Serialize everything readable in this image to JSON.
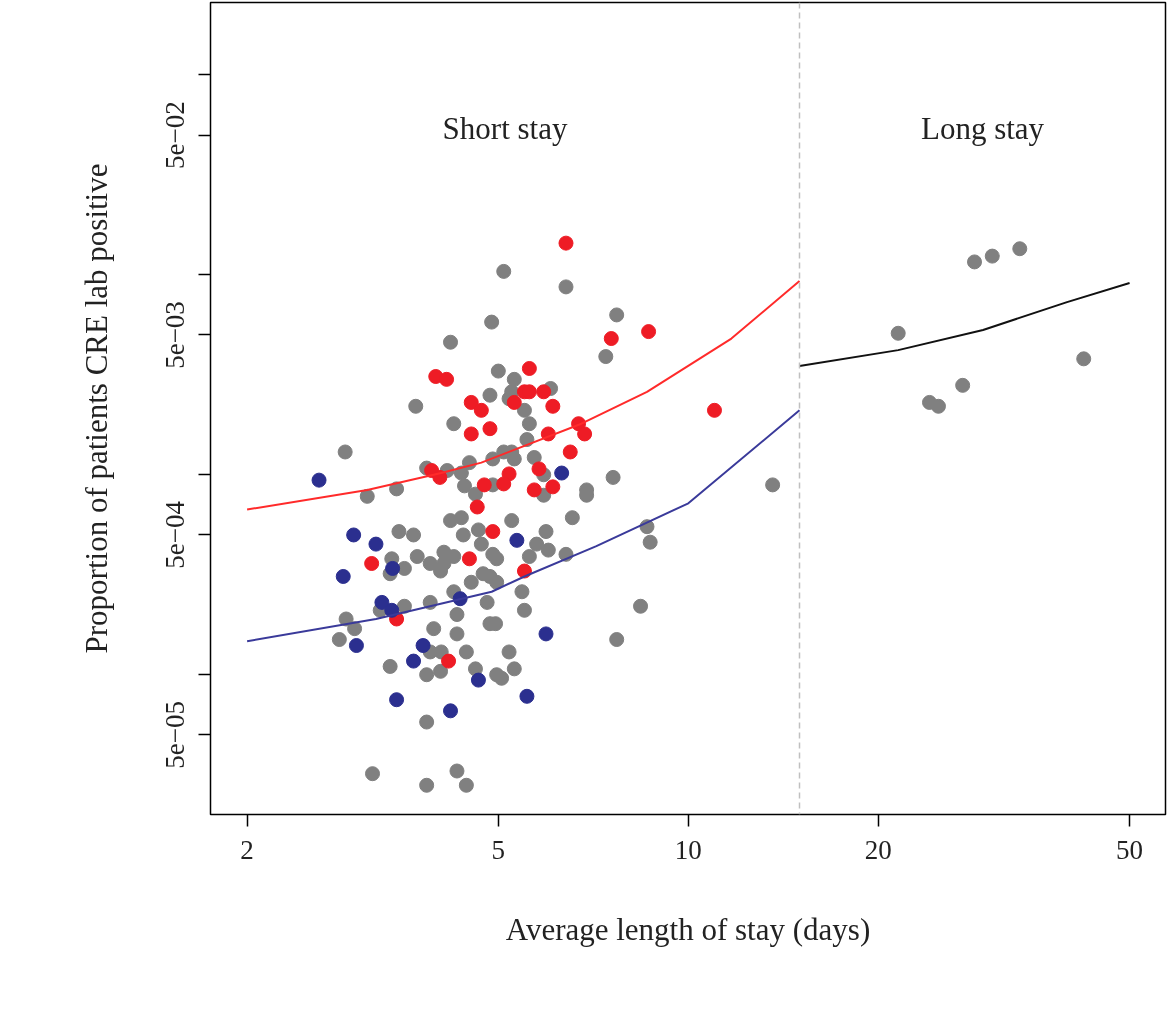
{
  "chart_data": {
    "type": "scatter",
    "xlabel": "Average length of stay (days)",
    "ylabel": "Proportion of patients CRE lab positive",
    "log": "xy",
    "xlim": [
      1.75,
      57
    ],
    "ylim": [
      2e-05,
      0.23
    ],
    "xticks": [
      2,
      5,
      10,
      20,
      50
    ],
    "yticks": [
      {
        "value": 0.1,
        "label": null
      },
      {
        "value": 0.05,
        "label": "5e−02"
      },
      {
        "value": 0.01,
        "label": null
      },
      {
        "value": 0.005,
        "label": "5e−03"
      },
      {
        "value": 0.001,
        "label": null
      },
      {
        "value": 0.0005,
        "label": "5e−04"
      },
      {
        "value": 0.0001,
        "label": null
      },
      {
        "value": 5e-05,
        "label": "5e−05"
      }
    ],
    "annotations": [
      "Short stay",
      "Long stay"
    ],
    "ref_lines": [
      {
        "axis": "x",
        "value": 15,
        "color": "#c0c0c0",
        "line_style": "dashed"
      }
    ],
    "series": [
      {
        "marker": "circle",
        "color": "#808080",
        "x": [
          4.88,
          4.2,
          3.7,
          4.25,
          4.85,
          2.86,
          3.45,
          3.1,
          3.85,
          4.15,
          4.37,
          4.5,
          4.42,
          4.6,
          5.1,
          6.4,
          7.7,
          7.4,
          5.0,
          5.3,
          6.05,
          5.25,
          5.2,
          5.5,
          5.6,
          5.55,
          5.1,
          5.25,
          4.9,
          5.3,
          5.7,
          5.9,
          4.9,
          5.9,
          7.6,
          6.9,
          6.9,
          3.48,
          3.67,
          3.39,
          3.37,
          3.55,
          3.72,
          3.9,
          4.1,
          4.05,
          4.1,
          4.2,
          4.37,
          4.4,
          4.65,
          4.7,
          4.25,
          4.25,
          4.53,
          3.25,
          3.55,
          3.9,
          2.87,
          2.96,
          2.8,
          3.95,
          4.3,
          4.3,
          3.9,
          4.06,
          4.45,
          3.37,
          3.85,
          4.05,
          4.6,
          3.85,
          3.16,
          4.3,
          3.85,
          4.45,
          4.85,
          4.9,
          5.25,
          6.55,
          5.95,
          5.75,
          5.6,
          6.0,
          6.4,
          8.6,
          8.7,
          4.97,
          4.73,
          4.97,
          5.45,
          4.8,
          5.5,
          8.4,
          4.85,
          4.95,
          5.2,
          7.7,
          5.3,
          4.97,
          5.06,
          13.6,
          21.5,
          28.4,
          30.3,
          33.5,
          42.3,
          27.2,
          24.1,
          24.9
        ],
        "values": [
          0.0058,
          0.0046,
          0.0022,
          0.0018,
          0.0025,
          0.0013,
          0.00085,
          0.00078,
          0.00108,
          0.00105,
          0.00102,
          0.00115,
          0.00088,
          0.0008,
          0.0104,
          0.0087,
          0.0063,
          0.0039,
          0.0033,
          0.003,
          0.0027,
          0.0026,
          0.0024,
          0.0021,
          0.0018,
          0.0015,
          0.0013,
          0.0013,
          0.0012,
          0.0012,
          0.00122,
          0.001,
          0.00089,
          0.00079,
          0.00097,
          0.00084,
          0.00079,
          0.00052,
          0.0005,
          0.00038,
          0.00032,
          0.00034,
          0.00039,
          0.00036,
          0.00036,
          0.00033,
          0.00041,
          0.00059,
          0.00061,
          0.0005,
          0.00053,
          0.00045,
          0.00039,
          0.00026,
          0.00029,
          0.00021,
          0.00022,
          0.00023,
          0.00019,
          0.00017,
          0.00015,
          0.00017,
          0.0002,
          0.00016,
          0.00013,
          0.00013,
          0.00013,
          0.00011,
          0.0001,
          0.000104,
          0.000107,
          5.8e-05,
          3.2e-05,
          3.3e-05,
          2.8e-05,
          2.8e-05,
          0.00031,
          0.0004,
          0.00059,
          0.00061,
          0.00052,
          0.00045,
          0.00039,
          0.00042,
          0.0004,
          0.00055,
          0.00046,
          0.00038,
          0.00032,
          0.00029,
          0.00026,
          0.00023,
          0.00021,
          0.00022,
          0.00018,
          0.00018,
          0.00013,
          0.00015,
          0.000107,
          0.0001,
          9.6e-05,
          0.00089,
          0.0051,
          0.0116,
          0.0124,
          0.0135,
          0.0038,
          0.0028,
          0.0023,
          0.0022
        ]
      },
      {
        "marker": "circle",
        "color": "#ee1c25",
        "x": [
          6.4,
          3.98,
          4.14,
          4.53,
          4.7,
          4.53,
          4.85,
          3.92,
          4.04,
          4.75,
          4.63,
          7.55,
          8.65,
          11.0,
          5.6,
          5.5,
          5.6,
          5.9,
          5.3,
          6.1,
          6.0,
          6.7,
          6.85,
          6.5,
          5.8,
          5.2,
          5.1,
          6.1,
          5.7,
          4.9,
          3.15,
          4.5,
          5.5,
          3.45,
          4.17
        ],
        "values": [
          0.0144,
          0.0031,
          0.003,
          0.0023,
          0.0021,
          0.0016,
          0.0017,
          0.00105,
          0.00097,
          0.00089,
          0.00069,
          0.0048,
          0.0052,
          0.0021,
          0.0034,
          0.0026,
          0.0026,
          0.0026,
          0.0023,
          0.0022,
          0.0016,
          0.0018,
          0.0016,
          0.0013,
          0.00107,
          0.00101,
          0.0009,
          0.00087,
          0.00084,
          0.00052,
          0.00036,
          0.00038,
          0.00033,
          0.00019,
          0.000117
        ]
      },
      {
        "marker": "circle",
        "color": "#2b2f8f",
        "x": [
          2.6,
          6.3,
          2.95,
          3.2,
          2.84,
          3.4,
          4.35,
          3.27,
          3.39,
          2.98,
          3.8,
          3.67,
          4.65,
          3.45,
          4.2,
          5.35,
          5.95,
          5.55
        ],
        "values": [
          0.00094,
          0.00102,
          0.0005,
          0.00045,
          0.00031,
          0.00034,
          0.00024,
          0.00023,
          0.00021,
          0.00014,
          0.00014,
          0.000117,
          9.4e-05,
          7.5e-05,
          6.6e-05,
          0.00047,
          0.00016,
          7.8e-05
        ]
      },
      {
        "type": "line",
        "color": "#ff2a2a",
        "x": [
          2,
          3.1,
          4.06,
          4.7,
          6.77,
          8.6,
          11.7,
          15
        ],
        "values": [
          0.00067,
          0.00084,
          0.00102,
          0.00115,
          0.0018,
          0.0026,
          0.0048,
          0.0093
        ]
      },
      {
        "type": "line",
        "color": "#3a3a9a",
        "x": [
          2,
          3.2,
          4.88,
          5.5,
          7.15,
          10,
          15
        ],
        "values": [
          0.000147,
          0.00019,
          0.00026,
          0.00031,
          0.00044,
          0.00072,
          0.0021
        ]
      },
      {
        "type": "line",
        "color": "#111111",
        "x": [
          15,
          21.5,
          29.3,
          39.8,
          50
        ],
        "values": [
          0.0035,
          0.0042,
          0.0053,
          0.0073,
          0.0091
        ]
      }
    ]
  }
}
